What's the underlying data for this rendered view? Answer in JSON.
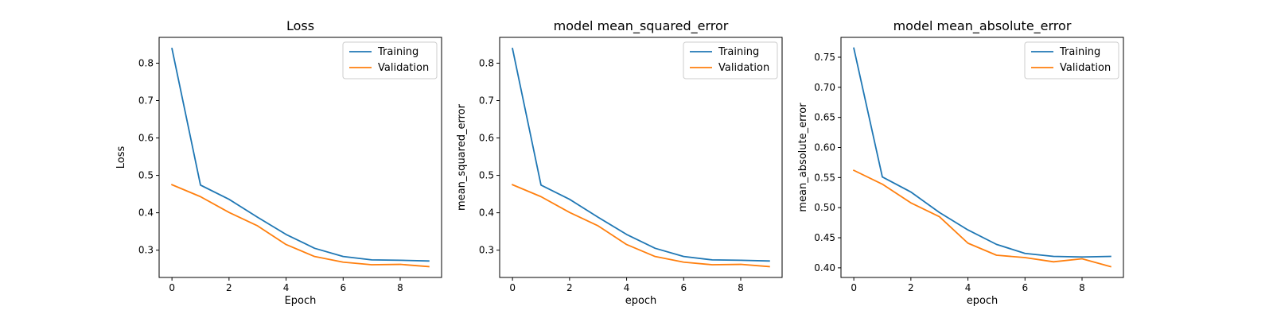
{
  "chart_data": [
    {
      "type": "line",
      "title": "Loss",
      "xlabel": "Epoch",
      "ylabel": "Loss",
      "x": [
        0,
        1,
        2,
        3,
        4,
        5,
        6,
        7,
        8,
        9
      ],
      "series": [
        {
          "name": "Training",
          "color": "#1f77b4",
          "values": [
            0.839,
            0.474,
            0.436,
            0.388,
            0.342,
            0.305,
            0.283,
            0.274,
            0.273,
            0.271
          ]
        },
        {
          "name": "Validation",
          "color": "#ff7f0e",
          "values": [
            0.475,
            0.443,
            0.401,
            0.365,
            0.315,
            0.283,
            0.268,
            0.261,
            0.262,
            0.256
          ]
        }
      ],
      "xlim": [
        -0.45,
        9.45
      ],
      "ylim": [
        0.227,
        0.869
      ],
      "xticks": [
        0,
        2,
        4,
        6,
        8
      ],
      "yticks": [
        0.3,
        0.4,
        0.5,
        0.6,
        0.7,
        0.8
      ],
      "ytick_labels": [
        "0.3",
        "0.4",
        "0.5",
        "0.6",
        "0.7",
        "0.8"
      ],
      "legend": "top-right",
      "grid": false
    },
    {
      "type": "line",
      "title": "model mean_squared_error",
      "xlabel": "epoch",
      "ylabel": "mean_squared_error",
      "x": [
        0,
        1,
        2,
        3,
        4,
        5,
        6,
        7,
        8,
        9
      ],
      "series": [
        {
          "name": "Training",
          "color": "#1f77b4",
          "values": [
            0.839,
            0.474,
            0.436,
            0.388,
            0.342,
            0.305,
            0.283,
            0.274,
            0.273,
            0.271
          ]
        },
        {
          "name": "Validation",
          "color": "#ff7f0e",
          "values": [
            0.475,
            0.443,
            0.401,
            0.365,
            0.315,
            0.283,
            0.268,
            0.261,
            0.262,
            0.256
          ]
        }
      ],
      "xlim": [
        -0.45,
        9.45
      ],
      "ylim": [
        0.227,
        0.869
      ],
      "xticks": [
        0,
        2,
        4,
        6,
        8
      ],
      "yticks": [
        0.3,
        0.4,
        0.5,
        0.6,
        0.7,
        0.8
      ],
      "ytick_labels": [
        "0.3",
        "0.4",
        "0.5",
        "0.6",
        "0.7",
        "0.8"
      ],
      "legend": "top-right",
      "grid": false
    },
    {
      "type": "line",
      "title": "model mean_absolute_error",
      "xlabel": "epoch",
      "ylabel": "mean_absolute_error",
      "x": [
        0,
        1,
        2,
        3,
        4,
        5,
        6,
        7,
        8,
        9
      ],
      "series": [
        {
          "name": "Training",
          "color": "#1f77b4",
          "values": [
            0.765,
            0.551,
            0.526,
            0.492,
            0.463,
            0.439,
            0.424,
            0.419,
            0.418,
            0.419
          ]
        },
        {
          "name": "Validation",
          "color": "#ff7f0e",
          "values": [
            0.562,
            0.539,
            0.508,
            0.485,
            0.441,
            0.421,
            0.417,
            0.41,
            0.415,
            0.402
          ]
        }
      ],
      "xlim": [
        -0.45,
        9.45
      ],
      "ylim": [
        0.384,
        0.783
      ],
      "xticks": [
        0,
        2,
        4,
        6,
        8
      ],
      "yticks": [
        0.4,
        0.45,
        0.5,
        0.55,
        0.6,
        0.65,
        0.7,
        0.75
      ],
      "ytick_labels": [
        "0.40",
        "0.45",
        "0.50",
        "0.55",
        "0.60",
        "0.65",
        "0.70",
        "0.75"
      ],
      "legend": "top-right",
      "grid": false
    }
  ]
}
